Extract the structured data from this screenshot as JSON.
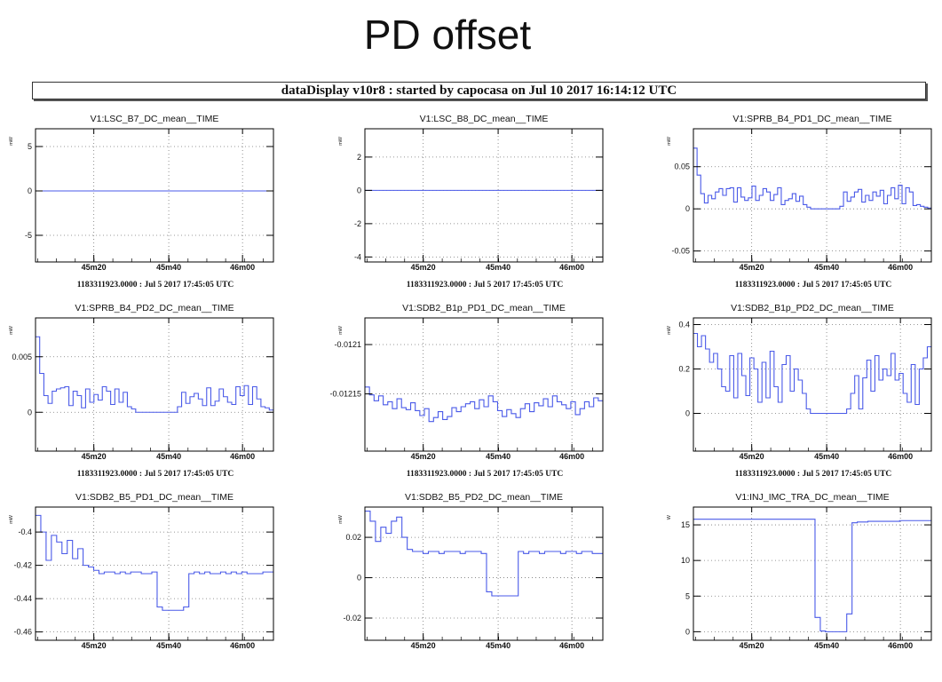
{
  "slide_title": "PD offset",
  "banner": "dataDisplay v10r8 : started by capocasa on Jul 10 2017 16:14:12 UTC",
  "time_label": "1183311923.0000 : Jul  5 2017 17:45:05 UTC",
  "line_color": "#4a5ae8",
  "chart_data": [
    {
      "type": "line",
      "title": "V1:LSC_B7_DC_mean__TIME",
      "unit": "mW",
      "show_time_label": true,
      "x_ticks": [
        "45m20",
        "45m40",
        "46m00"
      ],
      "y_ticks": [
        {
          "v": 5,
          "label": "5"
        },
        {
          "v": 0,
          "label": "0"
        },
        {
          "v": -5,
          "label": "-5"
        }
      ],
      "ylim": [
        -8,
        7
      ],
      "values": [
        0,
        0,
        0,
        0,
        0,
        0,
        0,
        0,
        0,
        0,
        0,
        0,
        0,
        0,
        0,
        0,
        0,
        0,
        0,
        0,
        0,
        0,
        0,
        0,
        0,
        0,
        0,
        0,
        0,
        0,
        0,
        0,
        0,
        0,
        0,
        0,
        0,
        0,
        0,
        0,
        0,
        0,
        0,
        0,
        0,
        0,
        0,
        0,
        0,
        0,
        0,
        0,
        0,
        0,
        0,
        0,
        0,
        0,
        0,
        0,
        0,
        0,
        0,
        0,
        0
      ]
    },
    {
      "type": "line",
      "title": "V1:LSC_B8_DC_mean__TIME",
      "unit": "mW",
      "show_time_label": true,
      "x_ticks": [
        "45m20",
        "45m40",
        "46m00"
      ],
      "y_ticks": [
        {
          "v": 2,
          "label": "2"
        },
        {
          "v": 0,
          "label": "0"
        },
        {
          "v": -2,
          "label": "-2"
        },
        {
          "v": -4,
          "label": "-4"
        }
      ],
      "ylim": [
        -4.3,
        3.7
      ],
      "values": [
        0,
        0,
        0,
        0,
        0,
        0,
        0,
        0,
        0,
        0,
        0,
        0,
        0,
        0,
        0,
        0,
        0,
        0,
        0,
        0,
        0,
        0,
        0,
        0,
        0,
        0,
        0,
        0,
        0,
        0,
        0,
        0,
        0,
        0,
        0,
        0,
        0,
        0,
        0,
        0,
        0,
        0,
        0,
        0,
        0,
        0,
        0,
        0,
        0,
        0,
        0,
        0,
        0,
        0,
        0,
        0,
        0,
        0,
        0,
        0,
        0,
        0,
        0,
        0,
        0
      ]
    },
    {
      "type": "line",
      "title": "V1:SPRB_B4_PD1_DC_mean__TIME",
      "unit": "mW",
      "show_time_label": true,
      "x_ticks": [
        "45m20",
        "45m40",
        "46m00"
      ],
      "y_ticks": [
        {
          "v": 0.05,
          "label": "0.05"
        },
        {
          "v": 0,
          "label": "0"
        },
        {
          "v": -0.05,
          "label": "-0.05"
        }
      ],
      "ylim": [
        -0.063,
        0.095
      ],
      "values": [
        0.072,
        0.04,
        0.018,
        0.007,
        0.016,
        0.012,
        0.02,
        0.024,
        0.016,
        0.024,
        0.025,
        0.008,
        0.025,
        0.014,
        0.01,
        0.013,
        0.027,
        0.01,
        0.016,
        0.024,
        0.02,
        0.01,
        0.017,
        0.025,
        0.005,
        0.01,
        0.012,
        0.018,
        0.009,
        0.015,
        0.005,
        0.002,
        0,
        0,
        0,
        0,
        0,
        0,
        0,
        0,
        0.003,
        0.02,
        0.009,
        0.014,
        0.02,
        0.023,
        0.008,
        0.016,
        0.01,
        0.02,
        0.015,
        0.022,
        0.006,
        0.016,
        0.025,
        0.012,
        0.028,
        0.006,
        0.025,
        0.02,
        0.004,
        0.005,
        0.003,
        0.002,
        0.001
      ]
    },
    {
      "type": "line",
      "title": "V1:SPRB_B4_PD2_DC_mean__TIME",
      "unit": "mW",
      "show_time_label": true,
      "x_ticks": [
        "45m20",
        "45m40",
        "46m00"
      ],
      "y_ticks": [
        {
          "v": 0.005,
          "label": "0.005"
        },
        {
          "v": 0,
          "label": "0"
        }
      ],
      "ylim": [
        -0.0035,
        0.0085
      ],
      "values": [
        0.0068,
        0.0035,
        0.0015,
        0.0008,
        0.0019,
        0.0021,
        0.0022,
        0.0023,
        0.0006,
        0.0019,
        0.0015,
        0.0004,
        0.0021,
        0.0009,
        0.0016,
        0.0011,
        0.0023,
        0.0019,
        0.0007,
        0.0021,
        0.0009,
        0.0018,
        0.0005,
        0.0003,
        0,
        0,
        0,
        0,
        0,
        0,
        0,
        0,
        0,
        0,
        0.0005,
        0.0018,
        0.0008,
        0.0014,
        0.0017,
        0.0012,
        0.0006,
        0.0022,
        0.0006,
        0.001,
        0.0021,
        0.0014,
        0.0009,
        0.0007,
        0.0023,
        0.0015,
        0.0024,
        0.0007,
        0.0023,
        0.0012,
        0.0005,
        0.0004,
        0.0002
      ]
    },
    {
      "type": "line",
      "title": "V1:SDB2_B1p_PD1_DC_mean__TIME",
      "unit": "mW",
      "show_time_label": true,
      "x_ticks": [
        "45m20",
        "45m40",
        "46m00"
      ],
      "y_ticks": [
        {
          "v": -0.0121,
          "label": "-0.0121"
        },
        {
          "v": -0.01215,
          "label": "-0.01215"
        }
      ],
      "ylim": [
        -0.012208,
        -0.012073
      ],
      "values": [
        -0.012143,
        -0.012151,
        -0.012157,
        -0.012152,
        -0.012161,
        -0.012158,
        -0.012165,
        -0.012155,
        -0.012164,
        -0.012166,
        -0.012159,
        -0.012167,
        -0.012172,
        -0.012165,
        -0.012178,
        -0.012174,
        -0.012168,
        -0.012176,
        -0.012173,
        -0.012164,
        -0.012168,
        -0.012163,
        -0.01216,
        -0.012158,
        -0.012165,
        -0.012156,
        -0.012163,
        -0.012152,
        -0.012158,
        -0.012167,
        -0.012173,
        -0.012166,
        -0.01217,
        -0.012174,
        -0.012165,
        -0.01216,
        -0.012168,
        -0.012159,
        -0.012162,
        -0.012155,
        -0.012163,
        -0.012152,
        -0.012158,
        -0.012161,
        -0.012165,
        -0.012158,
        -0.012171,
        -0.012165,
        -0.012158,
        -0.012163,
        -0.012154,
        -0.012157
      ]
    },
    {
      "type": "line",
      "title": "V1:SDB2_B1p_PD2_DC_mean__TIME",
      "unit": "mW",
      "show_time_label": true,
      "x_ticks": [
        "45m20",
        "45m40",
        "46m00"
      ],
      "y_ticks": [
        {
          "v": 0.4,
          "label": "0.4"
        },
        {
          "v": 0.2,
          "label": "0.2"
        },
        {
          "v": 0,
          "label": "0"
        }
      ],
      "ylim": [
        -0.17,
        0.43
      ],
      "values": [
        0.36,
        0.3,
        0.35,
        0.29,
        0.23,
        0.27,
        0.2,
        0.12,
        0.1,
        0.26,
        0.07,
        0.27,
        0.17,
        0.08,
        0.25,
        0.2,
        0.05,
        0.23,
        0.07,
        0.28,
        0.12,
        0.05,
        0.22,
        0.26,
        0.1,
        0.2,
        0.15,
        0.09,
        0.02,
        0,
        0,
        0,
        0,
        0,
        0,
        0,
        0,
        0,
        0.02,
        0.09,
        0.17,
        0.02,
        0.16,
        0.24,
        0.1,
        0.26,
        0.15,
        0.2,
        0.17,
        0.27,
        0.15,
        0.18,
        0.09,
        0.05,
        0.22,
        0.04,
        0.2,
        0.25,
        0.3
      ]
    },
    {
      "type": "line",
      "title": "V1:SDB2_B5_PD1_DC_mean__TIME",
      "unit": "mW",
      "show_time_label": false,
      "x_ticks": [
        "45m20",
        "45m40",
        "46m00"
      ],
      "y_ticks": [
        {
          "v": -0.4,
          "label": "-0.4"
        },
        {
          "v": -0.42,
          "label": "-0.42"
        },
        {
          "v": -0.44,
          "label": "-0.44"
        },
        {
          "v": -0.46,
          "label": "-0.46"
        }
      ],
      "ylim": [
        -0.465,
        -0.385
      ],
      "values": [
        -0.39,
        -0.4,
        -0.417,
        -0.402,
        -0.406,
        -0.413,
        -0.405,
        -0.416,
        -0.41,
        -0.42,
        -0.421,
        -0.423,
        -0.425,
        -0.424,
        -0.424,
        -0.425,
        -0.424,
        -0.425,
        -0.424,
        -0.424,
        -0.425,
        -0.425,
        -0.424,
        -0.445,
        -0.447,
        -0.447,
        -0.447,
        -0.447,
        -0.445,
        -0.425,
        -0.424,
        -0.425,
        -0.424,
        -0.425,
        -0.425,
        -0.424,
        -0.425,
        -0.424,
        -0.425,
        -0.424,
        -0.425,
        -0.425,
        -0.425,
        -0.424,
        -0.424
      ]
    },
    {
      "type": "line",
      "title": "V1:SDB2_B5_PD2_DC_mean__TIME",
      "unit": "mW",
      "show_time_label": false,
      "x_ticks": [
        "45m20",
        "45m40",
        "46m00"
      ],
      "y_ticks": [
        {
          "v": 0.02,
          "label": "0.02"
        },
        {
          "v": 0,
          "label": "0"
        },
        {
          "v": -0.02,
          "label": "-0.02"
        }
      ],
      "ylim": [
        -0.031,
        0.035
      ],
      "values": [
        0.033,
        0.028,
        0.018,
        0.025,
        0.022,
        0.028,
        0.03,
        0.02,
        0.014,
        0.013,
        0.013,
        0.012,
        0.013,
        0.013,
        0.012,
        0.013,
        0.013,
        0.013,
        0.012,
        0.013,
        0.013,
        0.013,
        0.012,
        -0.007,
        -0.009,
        -0.009,
        -0.009,
        -0.009,
        -0.009,
        0.013,
        0.012,
        0.013,
        0.013,
        0.012,
        0.013,
        0.013,
        0.013,
        0.012,
        0.013,
        0.013,
        0.012,
        0.013,
        0.013,
        0.012,
        0.012
      ]
    },
    {
      "type": "line",
      "title": "V1:INJ_IMC_TRA_DC_mean__TIME",
      "unit": "W",
      "show_time_label": false,
      "x_ticks": [
        "45m20",
        "45m40",
        "46m00"
      ],
      "y_ticks": [
        {
          "v": 15,
          "label": "15"
        },
        {
          "v": 10,
          "label": "10"
        },
        {
          "v": 5,
          "label": "5"
        },
        {
          "v": 0,
          "label": "0"
        }
      ],
      "ylim": [
        -1.2,
        17.5
      ],
      "values": [
        15.8,
        15.8,
        15.8,
        15.8,
        15.8,
        15.8,
        15.8,
        15.8,
        15.8,
        15.8,
        15.8,
        15.8,
        15.8,
        15.8,
        15.8,
        15.8,
        15.8,
        15.8,
        15.8,
        15.8,
        15.8,
        15.8,
        15.8,
        2,
        0.1,
        0,
        0,
        0,
        0,
        2.5,
        15.3,
        15.4,
        15.4,
        15.5,
        15.5,
        15.5,
        15.5,
        15.5,
        15.5,
        15.6,
        15.6,
        15.6,
        15.6,
        15.6,
        15.6
      ]
    }
  ]
}
